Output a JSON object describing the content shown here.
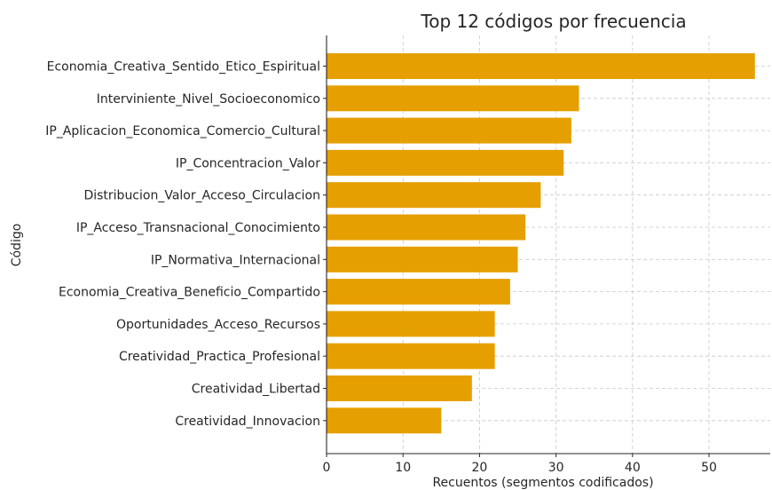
{
  "chart_data": {
    "type": "bar",
    "orientation": "horizontal",
    "title": "Top 12 códigos por frecuencia",
    "xlabel": "Recuentos (segmentos codificados)",
    "ylabel": "Código",
    "xlim": [
      0,
      58
    ],
    "xticks": [
      0,
      10,
      20,
      30,
      40,
      50
    ],
    "grid": true,
    "bar_color": "#E69F00",
    "categories": [
      "Economia_Creativa_Sentido_Etico_Espiritual",
      "Interviniente_Nivel_Socioeconomico",
      "IP_Aplicacion_Economica_Comercio_Cultural",
      "IP_Concentracion_Valor",
      "Distribucion_Valor_Acceso_Circulacion",
      "IP_Acceso_Transnacional_Conocimiento",
      "IP_Normativa_Internacional",
      "Economia_Creativa_Beneficio_Compartido",
      "Oportunidades_Acceso_Recursos",
      "Creatividad_Practica_Profesional",
      "Creatividad_Libertad",
      "Creatividad_Innovacion"
    ],
    "values": [
      56,
      33,
      32,
      31,
      28,
      26,
      25,
      24,
      22,
      22,
      19,
      15
    ]
  }
}
